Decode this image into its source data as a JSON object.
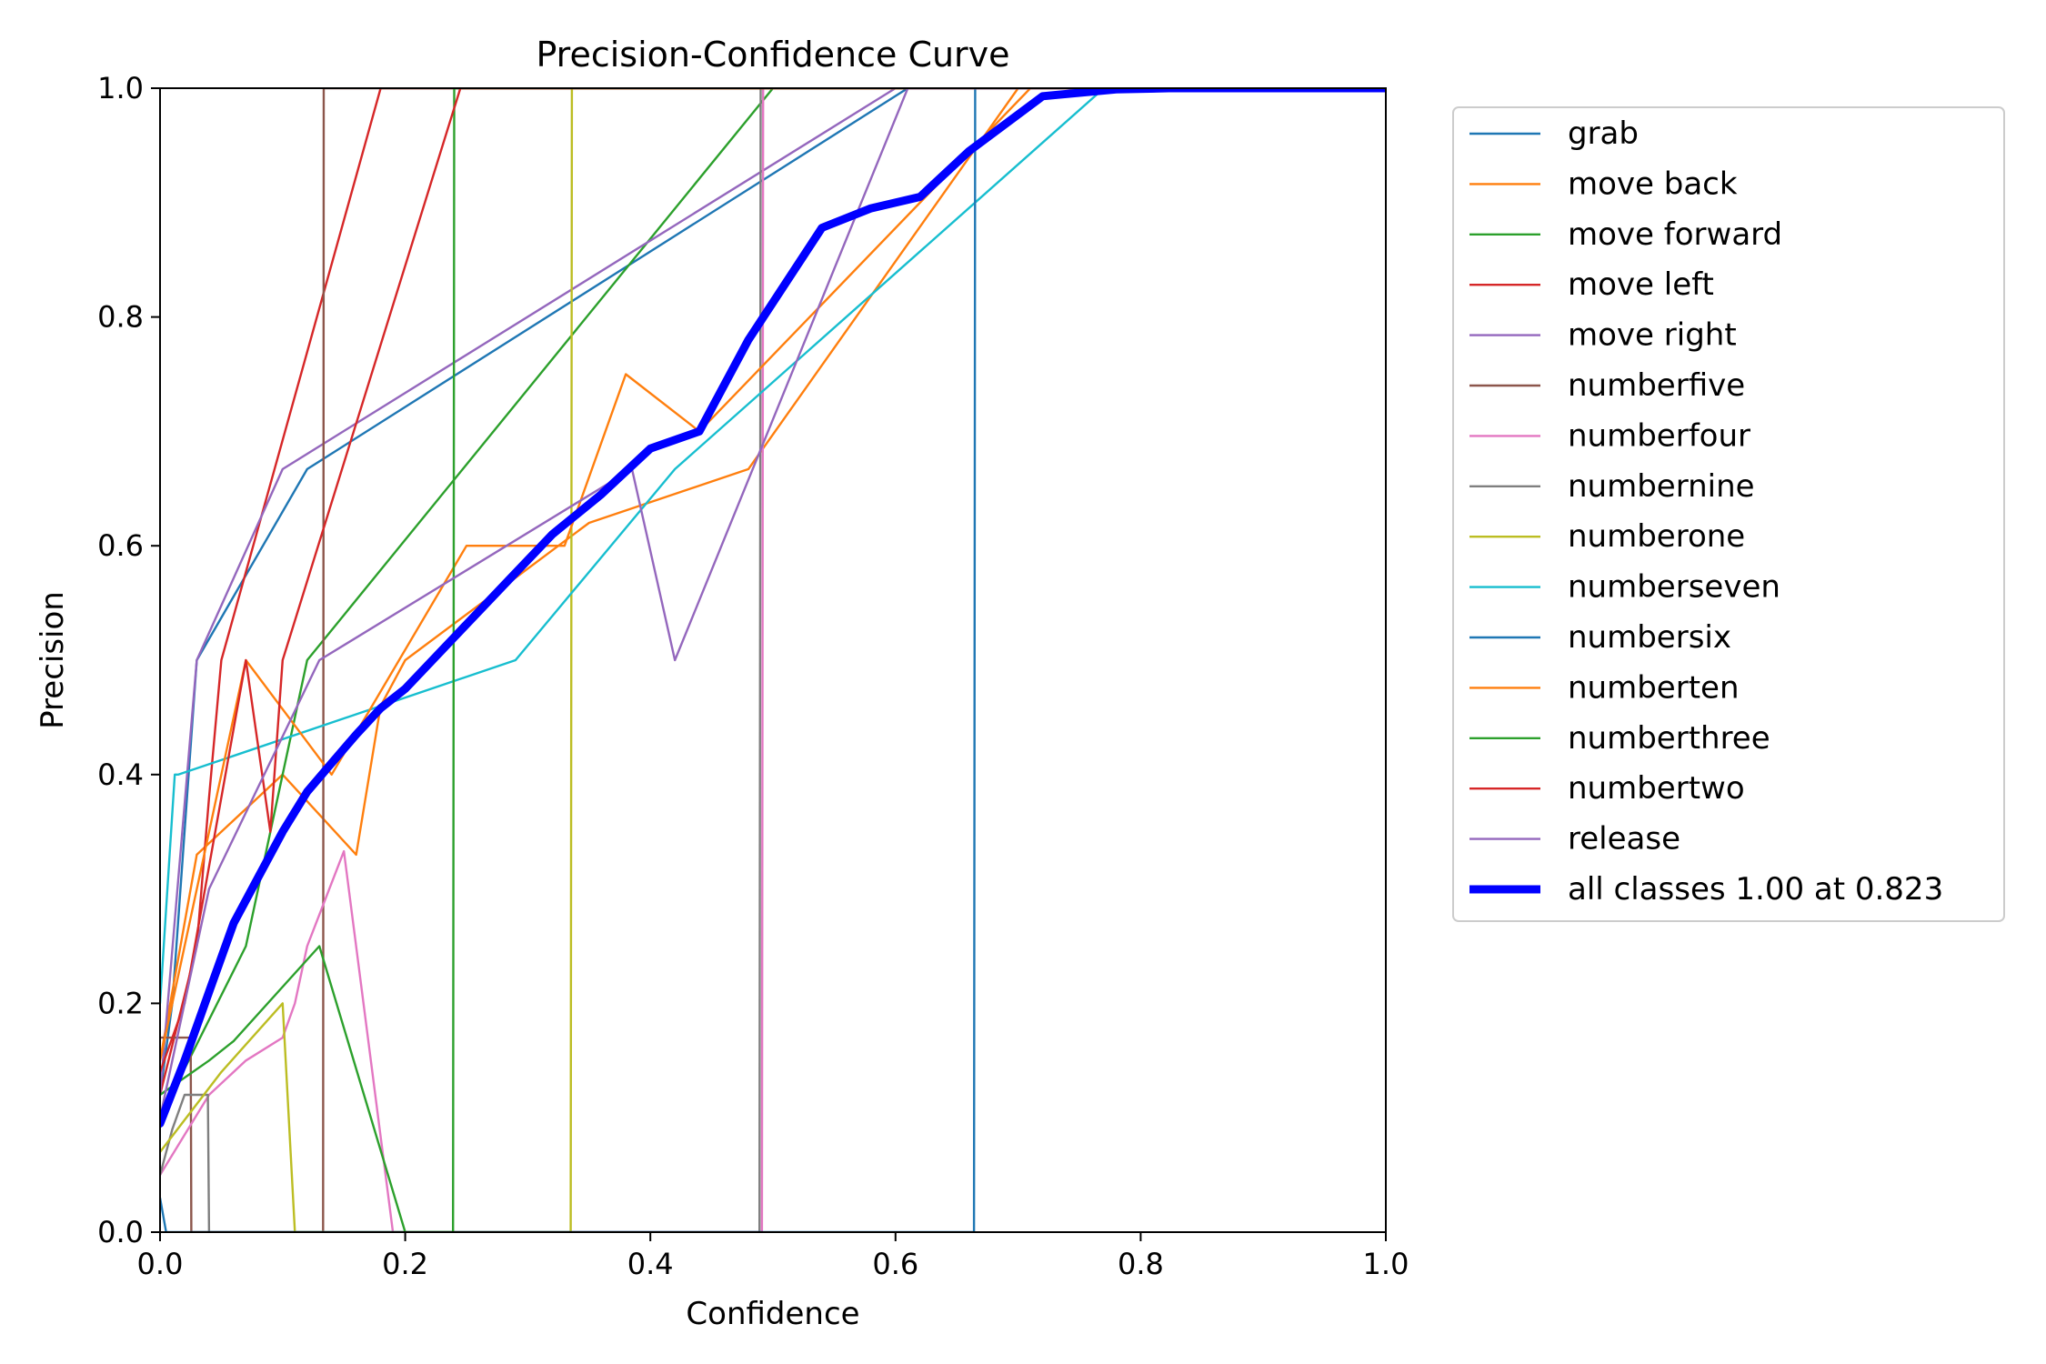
{
  "chart_data": {
    "type": "line",
    "title": "Precision-Confidence Curve",
    "xlabel": "Confidence",
    "ylabel": "Precision",
    "xlim": [
      0,
      1
    ],
    "ylim": [
      0,
      1
    ],
    "x_ticks": [
      "0.0",
      "0.2",
      "0.4",
      "0.6",
      "0.8",
      "1.0"
    ],
    "y_ticks": [
      "0.0",
      "0.2",
      "0.4",
      "0.6",
      "0.8",
      "1.0"
    ],
    "grid": false,
    "legend_position": "outside-right",
    "series": [
      {
        "name": "grab",
        "color": "#1f77b4",
        "x": [
          0,
          0.01,
          0.03,
          0.12,
          0.61,
          1.0
        ],
        "y": [
          0.12,
          0.2,
          0.5,
          0.667,
          1.0,
          1.0
        ]
      },
      {
        "name": "move back",
        "color": "#ff7f0e",
        "x": [
          0,
          0.03,
          0.1,
          0.16,
          0.18,
          0.2,
          0.35,
          0.48,
          0.7,
          1.0
        ],
        "y": [
          0.15,
          0.33,
          0.4,
          0.33,
          0.46,
          0.5,
          0.62,
          0.667,
          1.0,
          1.0
        ]
      },
      {
        "name": "move forward",
        "color": "#2ca02c",
        "x": [
          0,
          0.07,
          0.1,
          0.12,
          0.5,
          1.0
        ],
        "y": [
          0.1,
          0.25,
          0.4,
          0.5,
          1.0,
          1.0
        ]
      },
      {
        "name": "move left",
        "color": "#d62728",
        "x": [
          0,
          0.03,
          0.04,
          0.05,
          0.18,
          1.0
        ],
        "y": [
          0.12,
          0.25,
          0.38,
          0.5,
          1.0,
          1.0
        ]
      },
      {
        "name": "move right",
        "color": "#9467bd",
        "x": [
          0,
          0.03,
          0.1,
          0.6,
          1.0
        ],
        "y": [
          0.12,
          0.5,
          0.667,
          1.0,
          1.0
        ]
      },
      {
        "name": "numberfive",
        "color": "#8c564b",
        "x": [
          0,
          0.025,
          0.0255,
          0.133,
          0.1335,
          1.0
        ],
        "y": [
          0.17,
          0.17,
          0,
          0,
          1.0,
          1.0
        ]
      },
      {
        "name": "numberfour",
        "color": "#e377c2",
        "x": [
          0,
          0.04,
          0.07,
          0.1,
          0.11,
          0.12,
          0.15,
          0.19,
          0.491,
          0.492,
          1.0
        ],
        "y": [
          0.05,
          0.12,
          0.15,
          0.17,
          0.2,
          0.25,
          0.333,
          0,
          0,
          1.0,
          1.0
        ]
      },
      {
        "name": "numbernine",
        "color": "#7f7f7f",
        "x": [
          0,
          0.01,
          0.02,
          0.039,
          0.04,
          0.489,
          0.49,
          1.0
        ],
        "y": [
          0.05,
          0.09,
          0.12,
          0.12,
          0,
          0,
          1.0,
          1.0
        ]
      },
      {
        "name": "numberone",
        "color": "#bcbd22",
        "x": [
          0,
          0.05,
          0.1,
          0.11,
          0.335,
          0.336,
          1.0
        ],
        "y": [
          0.07,
          0.14,
          0.2,
          0,
          0,
          1.0,
          1.0
        ]
      },
      {
        "name": "numberseven",
        "color": "#17becf",
        "x": [
          0,
          0.012,
          0.015,
          0.29,
          0.42,
          0.77,
          1.0
        ],
        "y": [
          0.2,
          0.4,
          0.4,
          0.5,
          0.667,
          1.0,
          1.0
        ]
      },
      {
        "name": "numbersix",
        "color": "#1f77b4",
        "x": [
          0,
          0.005,
          0.664,
          0.665,
          1.0
        ],
        "y": [
          0.03,
          0,
          0,
          1.0,
          1.0
        ]
      },
      {
        "name": "numberten",
        "color": "#ff7f0e",
        "x": [
          0,
          0.07,
          0.14,
          0.25,
          0.33,
          0.38,
          0.44,
          0.71,
          1.0
        ],
        "y": [
          0.15,
          0.5,
          0.4,
          0.6,
          0.6,
          0.75,
          0.7,
          1.0,
          1.0
        ]
      },
      {
        "name": "numberthree",
        "color": "#2ca02c",
        "x": [
          0,
          0.04,
          0.06,
          0.13,
          0.2,
          0.21,
          0.239,
          0.24,
          1.0
        ],
        "y": [
          0.12,
          0.15,
          0.167,
          0.25,
          0,
          0,
          0,
          1.0,
          1.0
        ]
      },
      {
        "name": "numbertwo",
        "color": "#d62728",
        "x": [
          0,
          0.02,
          0.07,
          0.09,
          0.1,
          0.245,
          1.0
        ],
        "y": [
          0.14,
          0.2,
          0.5,
          0.35,
          0.5,
          1.0,
          1.0
        ]
      },
      {
        "name": "release",
        "color": "#9467bd",
        "x": [
          0,
          0.04,
          0.13,
          0.385,
          0.42,
          0.61,
          1.0
        ],
        "y": [
          0.1,
          0.3,
          0.5,
          0.667,
          0.5,
          1.0,
          1.0
        ]
      },
      {
        "name": "all classes 1.00 at 0.823",
        "color": "#0000ff",
        "bold": true,
        "x": [
          0,
          0.02,
          0.04,
          0.06,
          0.08,
          0.1,
          0.12,
          0.14,
          0.16,
          0.18,
          0.2,
          0.24,
          0.28,
          0.32,
          0.36,
          0.4,
          0.44,
          0.48,
          0.54,
          0.58,
          0.62,
          0.66,
          0.72,
          0.78,
          0.823,
          1.0
        ],
        "y": [
          0.095,
          0.15,
          0.21,
          0.27,
          0.31,
          0.35,
          0.385,
          0.41,
          0.435,
          0.458,
          0.475,
          0.52,
          0.565,
          0.61,
          0.645,
          0.685,
          0.7,
          0.78,
          0.878,
          0.895,
          0.905,
          0.945,
          0.993,
          0.999,
          1.0,
          1.0
        ]
      }
    ]
  }
}
